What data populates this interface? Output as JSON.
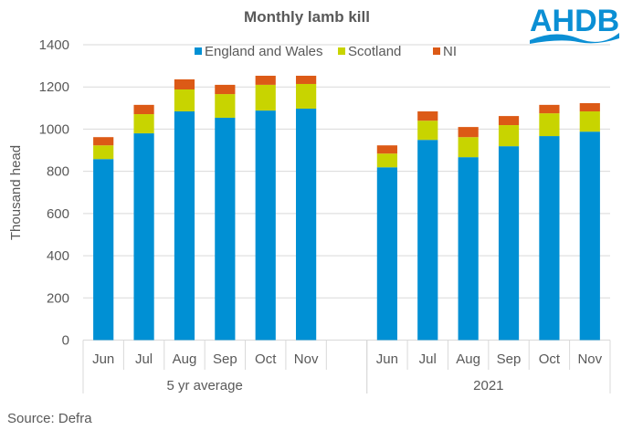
{
  "logo": {
    "text": "AHDB",
    "color": "#0b8fd4"
  },
  "source": "Source: Defra",
  "chart_data": {
    "type": "bar",
    "stacked": true,
    "title": "Monthly lamb kill",
    "ylabel": "Thousand head",
    "xlabel": "",
    "ylim": [
      0,
      1400
    ],
    "yticks": [
      0,
      200,
      400,
      600,
      800,
      1000,
      1200,
      1400
    ],
    "grid": true,
    "legend_position": "top",
    "groups": [
      {
        "label": "5 yr average",
        "categories": [
          "Jun",
          "Jul",
          "Aug",
          "Sep",
          "Oct",
          "Nov"
        ]
      },
      {
        "label": "2021",
        "categories": [
          "Jun",
          "Jul",
          "Aug",
          "Sep",
          "Oct",
          "Nov"
        ]
      }
    ],
    "series": [
      {
        "name": "England and Wales",
        "color": "#0090d4",
        "values": [
          [
            858,
            980,
            1084,
            1054,
            1088,
            1097
          ],
          [
            819,
            949,
            867,
            919,
            967,
            988
          ]
        ]
      },
      {
        "name": "Scotland",
        "color": "#c8d400",
        "values": [
          [
            65,
            91,
            104,
            112,
            122,
            117
          ],
          [
            65,
            91,
            95,
            100,
            108,
            96
          ]
        ]
      },
      {
        "name": "NI",
        "color": "#dc5a16",
        "values": [
          [
            39,
            44,
            48,
            44,
            43,
            39
          ],
          [
            39,
            44,
            48,
            43,
            40,
            39
          ]
        ]
      }
    ]
  }
}
